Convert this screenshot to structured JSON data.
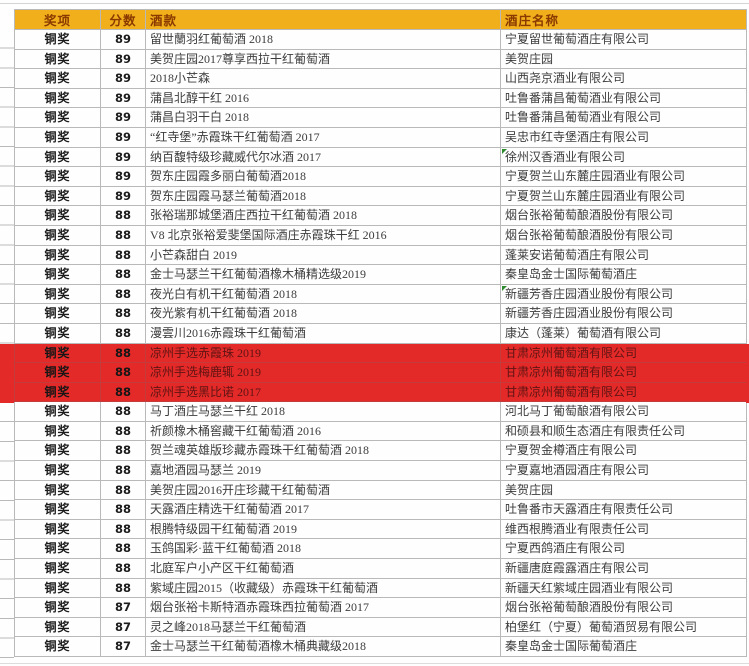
{
  "colors": {
    "header_bg": "#f0af1b",
    "header_text": "#8a3900",
    "grid": "#b9b9b9",
    "highlight_bg": "#e32a28",
    "highlight_text": "#5f1413",
    "marker_green": "#2e8b2e",
    "body_text": "#3c3c3c"
  },
  "table": {
    "columns": [
      "奖项",
      "分数",
      "酒款",
      "酒庄名称"
    ],
    "rows": [
      {
        "award": "铜奖",
        "score": "89",
        "wine": "留世蘭羽红葡萄酒 2018",
        "winery": "宁夏留世葡萄酒庄有限公司",
        "highlight": false,
        "marker": false
      },
      {
        "award": "铜奖",
        "score": "89",
        "wine": "美贺庄园2017尊享西拉干红葡萄酒",
        "winery": "美贺庄园",
        "highlight": false,
        "marker": false
      },
      {
        "award": "铜奖",
        "score": "89",
        "wine": "2018小芒森",
        "winery": "山西尧京酒业有限公司",
        "highlight": false,
        "marker": false
      },
      {
        "award": "铜奖",
        "score": "89",
        "wine": "蒲昌北醇干红 2016",
        "winery": "吐鲁番蒲昌葡萄酒业有限公司",
        "highlight": false,
        "marker": false
      },
      {
        "award": "铜奖",
        "score": "89",
        "wine": "蒲昌白羽干白 2018",
        "winery": "吐鲁番蒲昌葡萄酒业有限公司",
        "highlight": false,
        "marker": false
      },
      {
        "award": "铜奖",
        "score": "89",
        "wine": "“红寺堡”赤霞珠干红葡萄酒 2017",
        "winery": "吴忠市红寺堡酒庄有限公司",
        "highlight": false,
        "marker": false
      },
      {
        "award": "铜奖",
        "score": "89",
        "wine": "纳百馥特级珍藏威代尔冰酒 2017",
        "winery": "徐州汉香酒业有限公司",
        "highlight": false,
        "marker": true
      },
      {
        "award": "铜奖",
        "score": "89",
        "wine": "贺东庄园霞多丽白葡萄酒2018",
        "winery": "宁夏贺兰山东麓庄园酒业有限公司",
        "highlight": false,
        "marker": false
      },
      {
        "award": "铜奖",
        "score": "89",
        "wine": "贺东庄园霞马瑟兰葡萄酒2018",
        "winery": "宁夏贺兰山东麓庄园酒业有限公司",
        "highlight": false,
        "marker": false
      },
      {
        "award": "铜奖",
        "score": "88",
        "wine": "张裕瑞那城堡酒庄西拉干红葡萄酒 2018",
        "winery": "烟台张裕葡萄酿酒股份有限公司",
        "highlight": false,
        "marker": false
      },
      {
        "award": "铜奖",
        "score": "88",
        "wine": "V8 北京张裕爱斐堡国际酒庄赤霞珠干红 2016",
        "winery": "烟台张裕葡萄酿酒股份有限公司",
        "highlight": false,
        "marker": false
      },
      {
        "award": "铜奖",
        "score": "88",
        "wine": "小芒森甜白 2019",
        "winery": "蓬莱安诺葡萄酒庄有限公司",
        "highlight": false,
        "marker": false
      },
      {
        "award": "铜奖",
        "score": "88",
        "wine": "金士马瑟兰干红葡萄酒橡木桶精选级2019",
        "winery": "秦皇岛金士国际葡萄酒庄",
        "highlight": false,
        "marker": false
      },
      {
        "award": "铜奖",
        "score": "88",
        "wine": "夜光白有机干红葡萄酒 2018",
        "winery": "新疆芳香庄园酒业股份有限公司",
        "highlight": false,
        "marker": true
      },
      {
        "award": "铜奖",
        "score": "88",
        "wine": "夜光紫有机干红葡萄酒 2018",
        "winery": "新疆芳香庄园酒业股份有限公司",
        "highlight": false,
        "marker": false
      },
      {
        "award": "铜奖",
        "score": "88",
        "wine": "漫雲川2016赤霞珠干红葡萄酒",
        "winery": "康达（蓬莱）葡萄酒有限公司",
        "highlight": false,
        "marker": false
      },
      {
        "award": "铜奖",
        "score": "88",
        "wine": "凉州手选赤霞珠 2019",
        "winery": "甘肃凉州葡萄酒有限公司",
        "highlight": true,
        "marker": false
      },
      {
        "award": "铜奖",
        "score": "88",
        "wine": "凉州手选梅鹿辄 2019",
        "winery": "甘肃凉州葡萄酒有限公司",
        "highlight": true,
        "marker": false
      },
      {
        "award": "铜奖",
        "score": "88",
        "wine": "凉州手选黑比诺 2017",
        "winery": "甘肃凉州葡萄酒有限公司",
        "highlight": true,
        "marker": false
      },
      {
        "award": "铜奖",
        "score": "88",
        "wine": "马丁酒庄马瑟兰干红 2018",
        "winery": "河北马丁葡萄酿酒有限公司",
        "highlight": false,
        "marker": false
      },
      {
        "award": "铜奖",
        "score": "88",
        "wine": "祈颜橡木桶窖藏干红葡萄酒 2016",
        "winery": "和硕县和顺生态酒庄有限责任公司",
        "highlight": false,
        "marker": false
      },
      {
        "award": "铜奖",
        "score": "88",
        "wine": "贺兰魂英雄版珍藏赤霞珠干红葡萄酒 2018",
        "winery": "宁夏贺金樽酒庄有限公司",
        "highlight": false,
        "marker": false
      },
      {
        "award": "铜奖",
        "score": "88",
        "wine": "嘉地酒园马瑟兰 2019",
        "winery": "宁夏嘉地酒园酒庄有限公司",
        "highlight": false,
        "marker": false
      },
      {
        "award": "铜奖",
        "score": "88",
        "wine": "美贺庄园2016开庄珍藏干红葡萄酒",
        "winery": "美贺庄园",
        "highlight": false,
        "marker": false
      },
      {
        "award": "铜奖",
        "score": "88",
        "wine": "天露酒庄精选干红葡萄酒 2017",
        "winery": "吐鲁番市天露酒庄有限责任公司",
        "highlight": false,
        "marker": false
      },
      {
        "award": "铜奖",
        "score": "88",
        "wine": "根腾特级园干红葡萄酒 2019",
        "winery": "维西根腾酒业有限责任公司",
        "highlight": false,
        "marker": false
      },
      {
        "award": "铜奖",
        "score": "88",
        "wine": "玉鸽国彩·蓝干红葡萄酒 2018",
        "winery": "宁夏西鸽酒庄有限公司",
        "highlight": false,
        "marker": false
      },
      {
        "award": "铜奖",
        "score": "88",
        "wine": "北庭军户小产区干红葡萄酒",
        "winery": "新疆唐庭霞露酒庄有限公司",
        "highlight": false,
        "marker": false
      },
      {
        "award": "铜奖",
        "score": "88",
        "wine": "紫域庄园2015（收藏级）赤霞珠干红葡萄酒",
        "winery": "新疆天红紫域庄园酒业有限公司",
        "highlight": false,
        "marker": false
      },
      {
        "award": "铜奖",
        "score": "87",
        "wine": "烟台张裕卡斯特酒赤霞珠西拉葡萄酒 2017",
        "winery": "烟台张裕葡萄酿酒股份有限公司",
        "highlight": false,
        "marker": false
      },
      {
        "award": "铜奖",
        "score": "87",
        "wine": "灵之峰2018马瑟兰干红葡萄酒",
        "winery": "柏堡红（宁夏）葡萄酒贸易有限公司",
        "highlight": false,
        "marker": false
      },
      {
        "award": "铜奖",
        "score": "87",
        "wine": "金士马瑟兰干红葡萄酒橡木桶典藏级2018",
        "winery": "秦皇岛金士国际葡萄酒庄",
        "highlight": false,
        "marker": false
      }
    ]
  }
}
